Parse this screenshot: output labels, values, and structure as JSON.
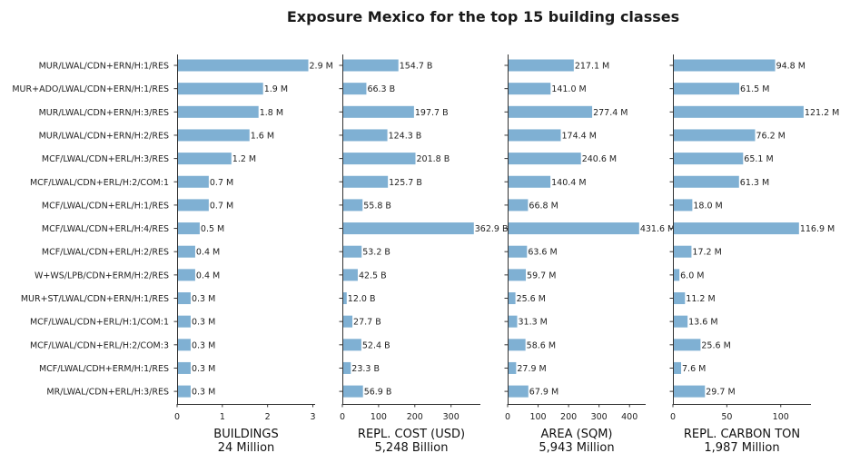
{
  "chart_data": {
    "type": "bar",
    "orientation": "horizontal",
    "title": "Exposure Mexico for the top 15 building classes",
    "bar_color": "#7fb0d3",
    "categories": [
      "MUR/LWAL/CDN+ERN/H:1/RES",
      "MUR+ADO/LWAL/CDN+ERN/H:1/RES",
      "MUR/LWAL/CDN+ERN/H:3/RES",
      "MUR/LWAL/CDN+ERN/H:2/RES",
      "MCF/LWAL/CDN+ERL/H:3/RES",
      "MCF/LWAL/CDN+ERL/H:2/COM:1",
      "MCF/LWAL/CDN+ERL/H:1/RES",
      "MCF/LWAL/CDN+ERL/H:4/RES",
      "MCF/LWAL/CDN+ERL/H:2/RES",
      "W+WS/LPB/CDN+ERM/H:2/RES",
      "MUR+ST/LWAL/CDN+ERN/H:1/RES",
      "MCF/LWAL/CDN+ERL/H:1/COM:1",
      "MCF/LWAL/CDN+ERL/H:2/COM:3",
      "MCF/LWAL/CDH+ERM/H:1/RES",
      "MR/LWAL/CDN+ERL/H:3/RES"
    ],
    "panels": [
      {
        "xlabel": "BUILDINGS",
        "total": "24 Million",
        "xlim": [
          0,
          3.05
        ],
        "xticks": [
          0,
          1,
          2,
          3
        ],
        "values": [
          2.9,
          1.9,
          1.8,
          1.6,
          1.2,
          0.7,
          0.7,
          0.5,
          0.4,
          0.4,
          0.3,
          0.3,
          0.3,
          0.3,
          0.3
        ],
        "labels": [
          "2.9 M",
          "1.9 M",
          "1.8 M",
          "1.6 M",
          "1.2 M",
          "0.7 M",
          "0.7 M",
          "0.5 M",
          "0.4 M",
          "0.4 M",
          "0.3 M",
          "0.3 M",
          "0.3 M",
          "0.3 M",
          "0.3 M"
        ]
      },
      {
        "xlabel": "REPL. COST (USD)",
        "total": "5,248 Billion",
        "xlim": [
          0,
          381
        ],
        "xticks": [
          0,
          100,
          200,
          300
        ],
        "values": [
          154.7,
          66.3,
          197.7,
          124.3,
          201.8,
          125.7,
          55.8,
          362.9,
          53.2,
          42.5,
          12.0,
          27.7,
          52.4,
          23.3,
          56.9
        ],
        "labels": [
          "154.7 B",
          "66.3 B",
          "197.7 B",
          "124.3 B",
          "201.8 B",
          "125.7 B",
          "55.8 B",
          "362.9 B",
          "53.2 B",
          "42.5 B",
          "12.0 B",
          "27.7 B",
          "52.4 B",
          "23.3 B",
          "56.9 B"
        ]
      },
      {
        "xlabel": "AREA (SQM)",
        "total": "5,943 Million",
        "xlim": [
          0,
          453
        ],
        "xticks": [
          0,
          100,
          200,
          300,
          400
        ],
        "values": [
          217.1,
          141.0,
          277.4,
          174.4,
          240.6,
          140.4,
          66.8,
          431.6,
          63.6,
          59.7,
          25.6,
          31.3,
          58.6,
          27.9,
          67.9
        ],
        "labels": [
          "217.1 M",
          "141.0 M",
          "277.4 M",
          "174.4 M",
          "240.6 M",
          "140.4 M",
          "66.8 M",
          "431.6 M",
          "63.6 M",
          "59.7 M",
          "25.6 M",
          "31.3 M",
          "58.6 M",
          "27.9 M",
          "67.9 M"
        ]
      },
      {
        "xlabel": "REPL. CARBON TON",
        "total": "1,987 Million",
        "xlim": [
          0,
          128
        ],
        "xticks": [
          0,
          50,
          100
        ],
        "values": [
          94.8,
          61.5,
          121.2,
          76.2,
          65.1,
          61.3,
          18.0,
          116.9,
          17.2,
          6.0,
          11.2,
          13.6,
          25.6,
          7.6,
          29.7
        ],
        "labels": [
          "94.8 M",
          "61.5 M",
          "121.2 M",
          "76.2 M",
          "65.1 M",
          "61.3 M",
          "18.0 M",
          "116.9 M",
          "17.2 M",
          "6.0 M",
          "11.2 M",
          "13.6 M",
          "25.6 M",
          "7.6 M",
          "29.7 M"
        ]
      }
    ]
  }
}
